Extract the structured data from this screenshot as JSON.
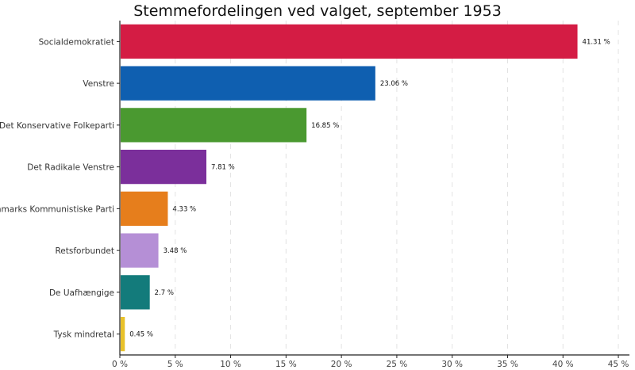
{
  "chart_data": {
    "type": "bar",
    "orientation": "horizontal",
    "title": "Stemmefordelingen ved valget, september 1953",
    "xlabel": "",
    "ylabel": "",
    "categories": [
      "Socialdemokratiet",
      "Venstre",
      "Det Konservative Folkeparti",
      "Det Radikale Venstre",
      "Danmarks Kommunistiske Parti",
      "Retsforbundet",
      "De Uafhængige",
      "Tysk mindretal"
    ],
    "values": [
      41.31,
      23.06,
      16.85,
      7.81,
      4.33,
      3.48,
      2.7,
      0.45
    ],
    "value_labels": [
      "41.31 %",
      "23.06 %",
      "16.85 %",
      "7.81 %",
      "4.33 %",
      "3.48 %",
      "2.7 %",
      "0.45 %"
    ],
    "colors": [
      "#d41c44",
      "#0f5fb0",
      "#4a9930",
      "#7b2f9b",
      "#e67e1c",
      "#b58fd6",
      "#137b7b",
      "#e8c12a"
    ],
    "xlim": [
      0,
      46
    ],
    "xticks": [
      0,
      5,
      10,
      15,
      20,
      25,
      30,
      35,
      40,
      45
    ],
    "xtick_labels": [
      "0 %",
      "5 %",
      "10 %",
      "15 %",
      "20 %",
      "25 %",
      "30 %",
      "35 %",
      "40 %",
      "45 %"
    ],
    "grid": "vertical-dashed",
    "legend": "none"
  }
}
